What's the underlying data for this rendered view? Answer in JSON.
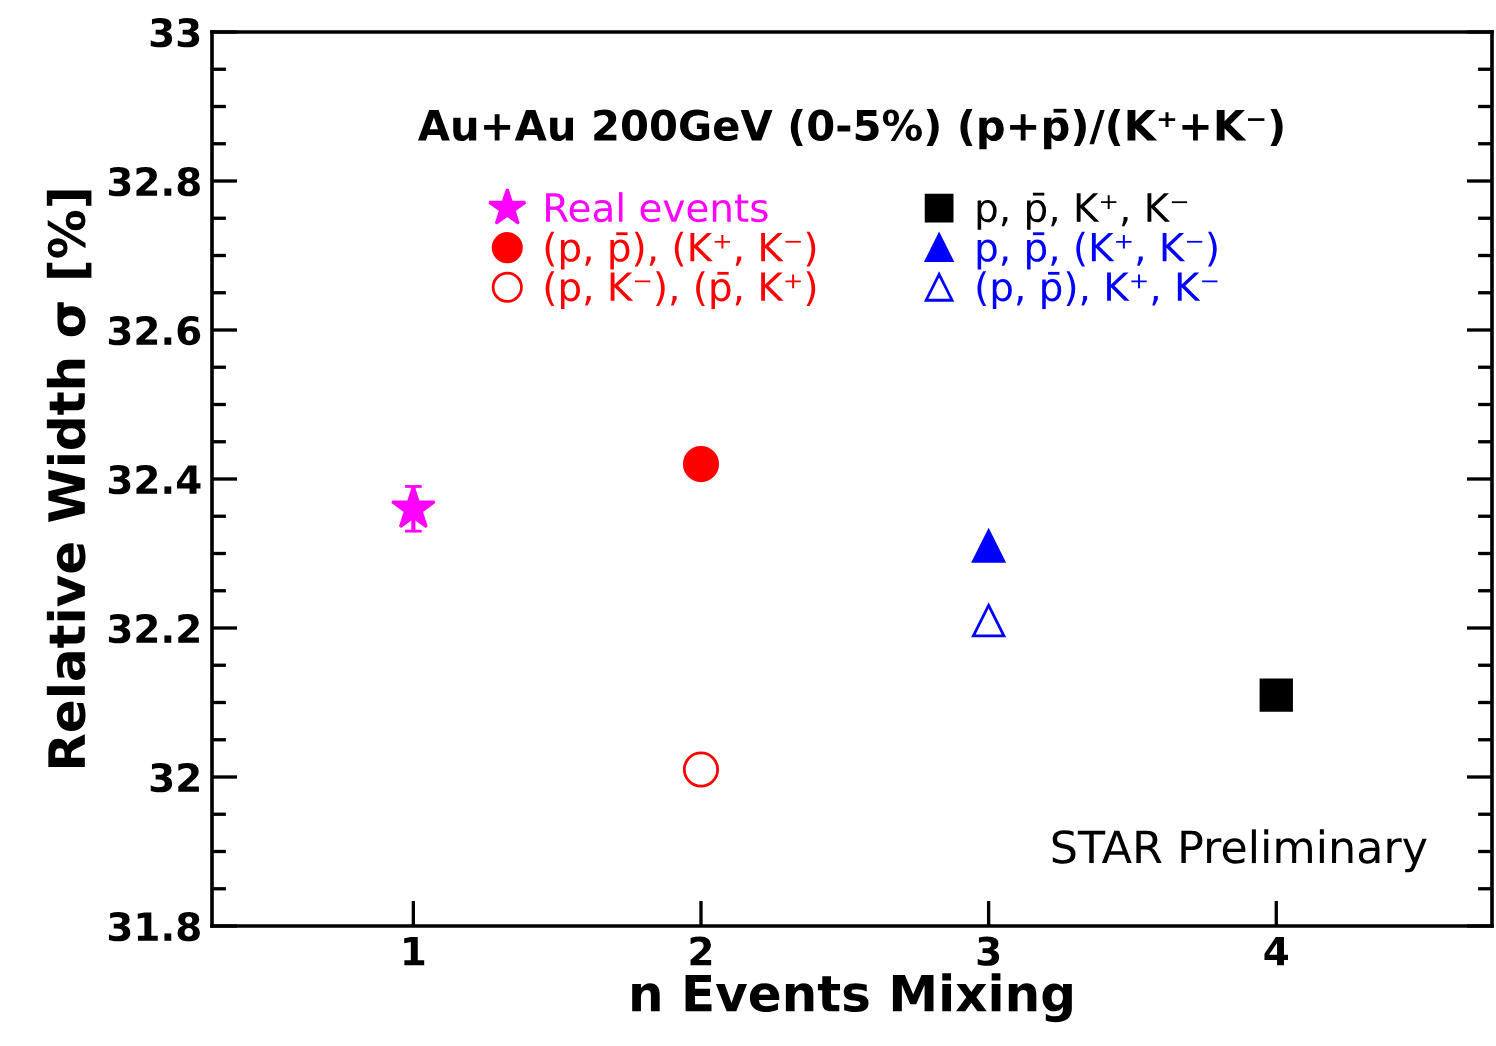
{
  "chart_data": {
    "type": "scatter",
    "title": "Au+Au 200GeV (0-5%) (p+p̄)/(K⁺+K⁻)",
    "xlabel": "n Events Mixing",
    "ylabel": "Relative Width σ [%]",
    "series": [
      {
        "name": "Real events",
        "color": "#ff00ff",
        "marker": "star",
        "x": [
          1
        ],
        "values": [
          32.36
        ],
        "errors": [
          0.03
        ]
      },
      {
        "name": "(p, p̄), (K⁺, K⁻)",
        "color": "#ff0000",
        "marker": "circle",
        "x": [
          2
        ],
        "values": [
          32.42
        ]
      },
      {
        "name": "(p, K⁻), (p̄, K⁺)",
        "color": "#ff0000",
        "marker": "circle-open",
        "x": [
          2
        ],
        "values": [
          32.01
        ]
      },
      {
        "name": "p, p̄, K⁺, K⁻",
        "color": "#000000",
        "marker": "square",
        "x": [
          4
        ],
        "values": [
          32.11
        ]
      },
      {
        "name": "p, p̄, (K⁺, K⁻)",
        "color": "#0000ff",
        "marker": "triangle",
        "x": [
          3
        ],
        "values": [
          32.31
        ]
      },
      {
        "name": "(p, p̄), K⁺, K⁻",
        "color": "#0000ff",
        "marker": "triangle-open",
        "x": [
          3
        ],
        "values": [
          32.21
        ]
      }
    ],
    "xlim": [
      0.3,
      4.75
    ],
    "xticks": [
      1,
      2,
      3,
      4
    ],
    "ylim": [
      31.8,
      33
    ],
    "yticks": [
      31.8,
      32,
      32.2,
      32.4,
      32.6,
      32.8,
      33
    ],
    "grid": false,
    "legend": "top",
    "annotations": [
      "STAR Preliminary"
    ]
  }
}
